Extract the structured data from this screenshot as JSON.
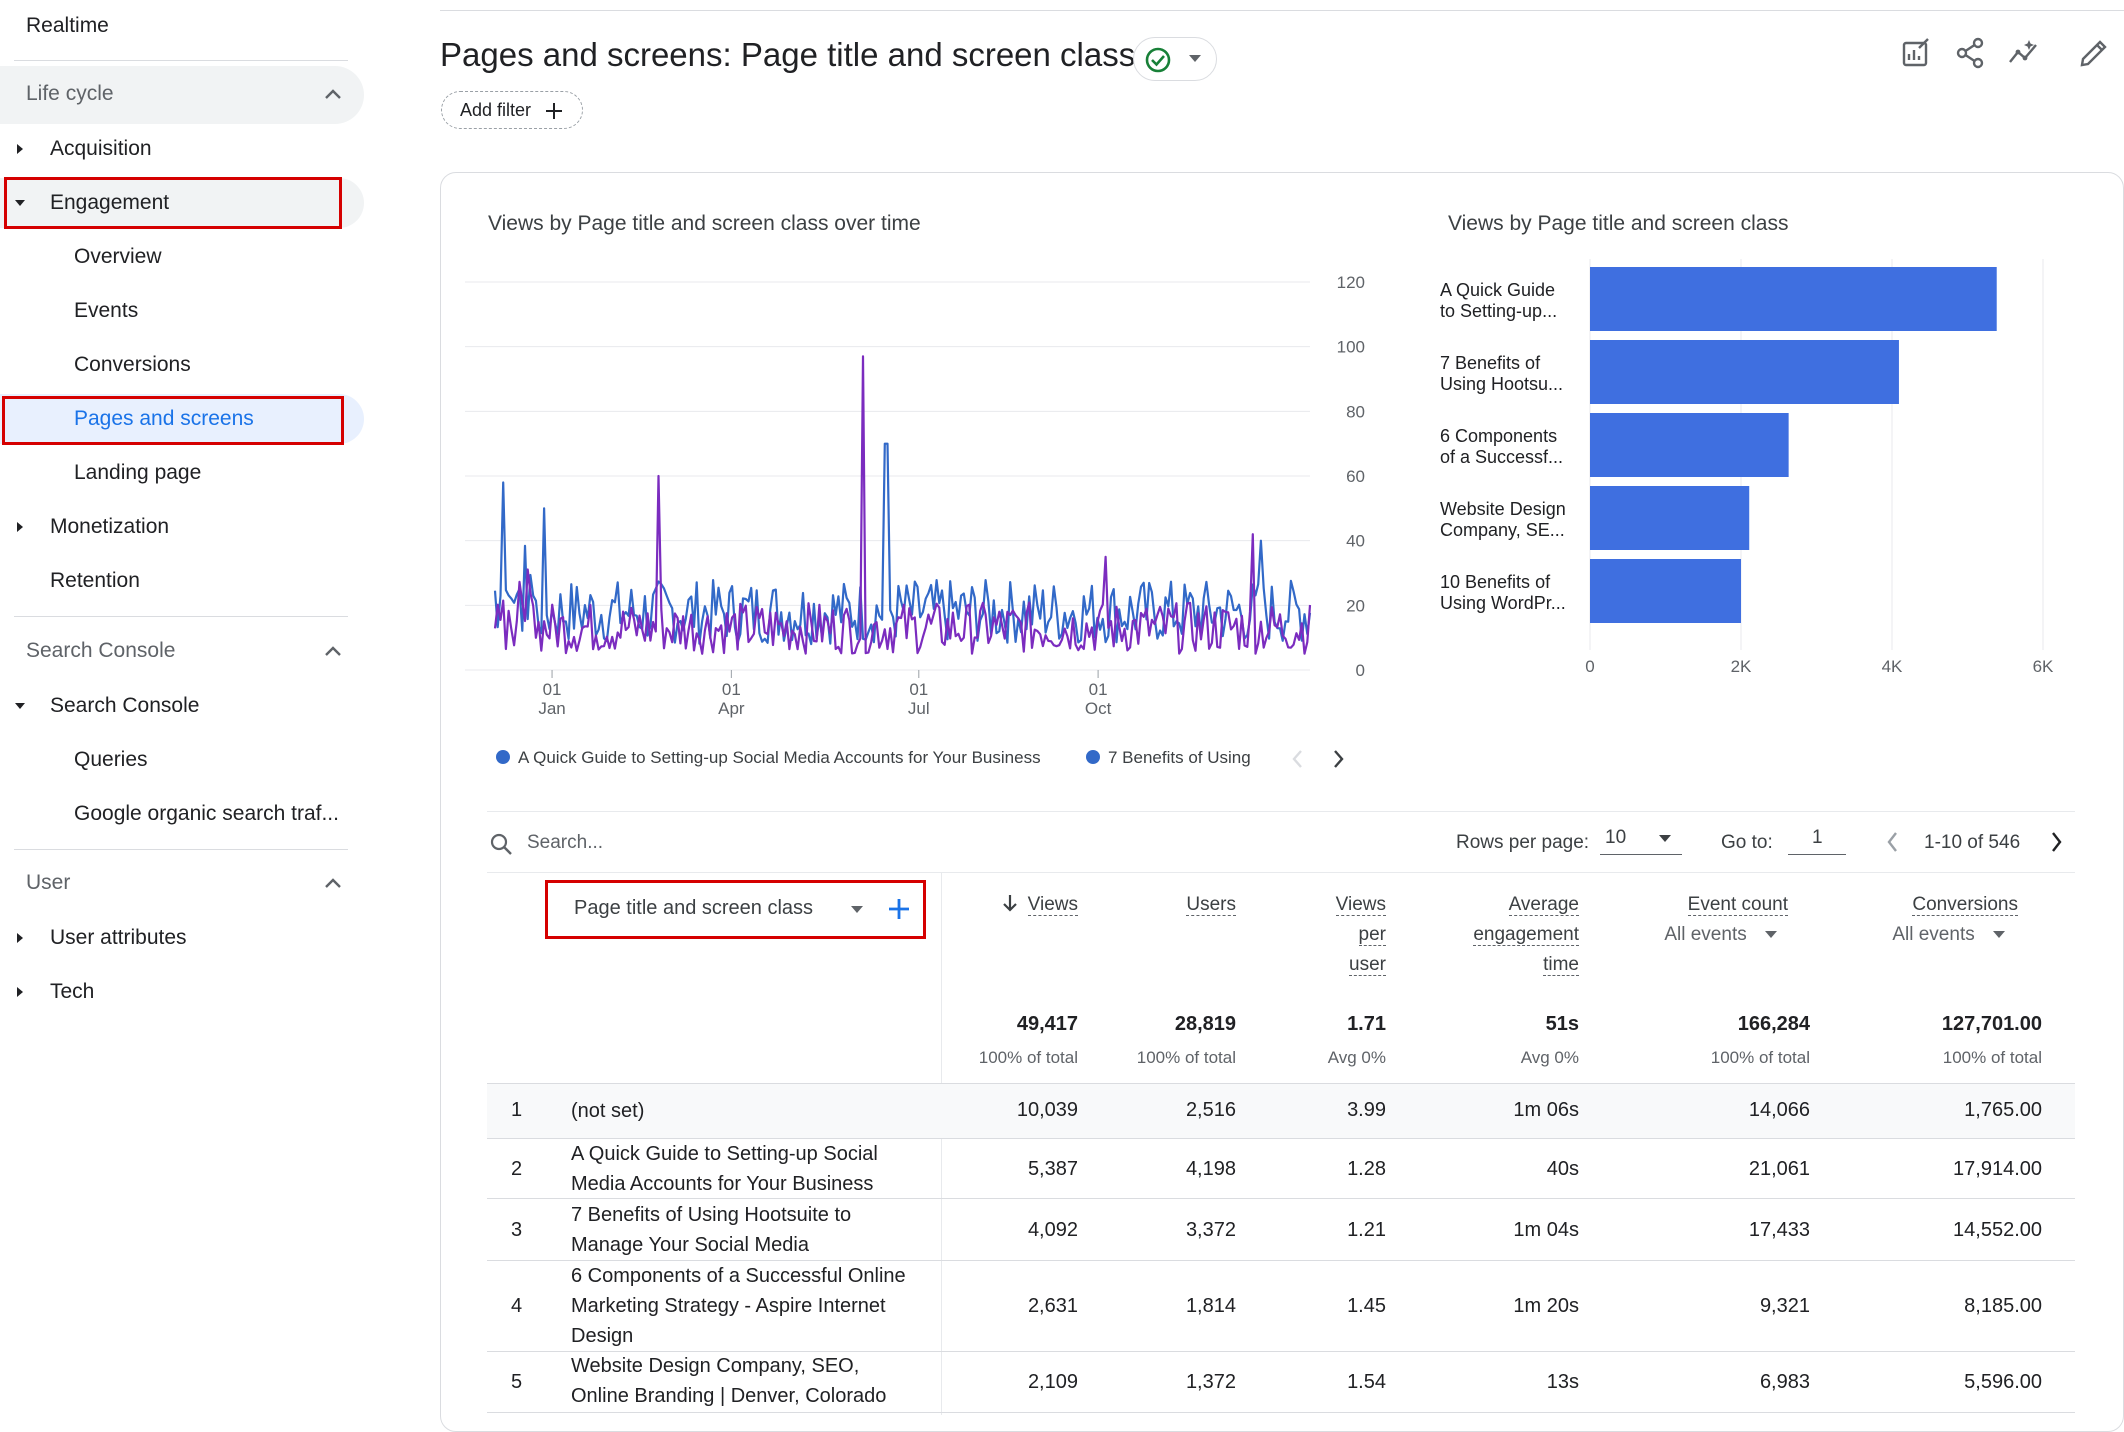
{
  "sidebar": {
    "realtime": "Realtime",
    "sections": [
      {
        "label": "Life cycle"
      },
      {
        "label": "Search Console"
      },
      {
        "label": "User"
      }
    ],
    "items": {
      "acquisition": "Acquisition",
      "engagement": "Engagement",
      "overview": "Overview",
      "events": "Events",
      "conversions": "Conversions",
      "pages_and_screens": "Pages and screens",
      "landing_page": "Landing page",
      "monetization": "Monetization",
      "retention": "Retention",
      "search_console": "Search Console",
      "queries": "Queries",
      "google_organic": "Google organic search traf...",
      "user_attributes": "User attributes",
      "tech": "Tech"
    }
  },
  "header": {
    "title": "Pages and screens: Page title and screen class",
    "add_filter": "Add filter"
  },
  "line_chart": {
    "title": "Views by Page title and screen class over time",
    "legend": [
      "A Quick Guide to Setting-up Social Media Accounts for Your Business",
      "7 Benefits of Using"
    ]
  },
  "bar_chart": {
    "title": "Views by Page title and screen class"
  },
  "chart_data": [
    {
      "type": "line",
      "title": "Views by Page title and screen class over time",
      "ylim": [
        0,
        120
      ],
      "y_ticks": [
        "120",
        "100",
        "80",
        "60",
        "40",
        "20",
        "0"
      ],
      "x_ticks": [
        {
          "top": "01",
          "bottom": "Jan"
        },
        {
          "top": "01",
          "bottom": "Apr"
        },
        {
          "top": "01",
          "bottom": "Jul"
        },
        {
          "top": "01",
          "bottom": "Oct"
        }
      ],
      "series": [
        {
          "name": "A Quick Guide to Setting-up Social Media Accounts for Your Business",
          "color": "#3269c8",
          "peaks": [
            {
              "x": 0.01,
              "y": 58
            },
            {
              "x": 0.06,
              "y": 50
            },
            {
              "x": 0.48,
              "y": 70
            },
            {
              "x": 0.94,
              "y": 40
            }
          ]
        },
        {
          "name": "7 Benefits of Using Hootsuite to Manage Your Social Media",
          "color": "#7b2cbf",
          "peaks": [
            {
              "x": 0.2,
              "y": 60
            },
            {
              "x": 0.45,
              "y": 97
            },
            {
              "x": 0.75,
              "y": 35
            },
            {
              "x": 0.93,
              "y": 42
            }
          ]
        }
      ]
    },
    {
      "type": "bar",
      "title": "Views by Page title and screen class",
      "categories": [
        [
          "A Quick Guide",
          "to Setting-up..."
        ],
        [
          "7 Benefits of",
          "Using Hootsu..."
        ],
        [
          "6 Components",
          "of a Successf..."
        ],
        [
          "Website Design",
          "Company, SE..."
        ],
        [
          "10 Benefits of",
          "Using WordPr..."
        ]
      ],
      "values": [
        5387,
        4092,
        2631,
        2109,
        2000
      ],
      "xlim": [
        0,
        6000
      ],
      "x_ticks": [
        "0",
        "2K",
        "4K",
        "6K"
      ],
      "color": "#3f6fe0"
    }
  ],
  "table_controls": {
    "search_placeholder": "Search...",
    "rows_per_page_label": "Rows per page:",
    "rows_per_page_value": "10",
    "goto_label": "Go to:",
    "goto_value": "1",
    "range": "1-10 of 546"
  },
  "table": {
    "dimension": "Page title and screen class",
    "columns": [
      {
        "label": "Views",
        "sorted": true
      },
      {
        "label": "Users"
      },
      {
        "label": [
          "Views",
          "per",
          "user"
        ]
      },
      {
        "label": [
          "Average",
          "engagement",
          "time"
        ]
      },
      {
        "label": "Event count",
        "sub": "All events"
      },
      {
        "label": "Conversions",
        "sub": "All events"
      }
    ],
    "totals": [
      "49,417",
      "28,819",
      "1.71",
      "51s",
      "166,284",
      "127,701.00"
    ],
    "totals_sub": [
      "100% of total",
      "100% of total",
      "Avg 0%",
      "Avg 0%",
      "100% of total",
      "100% of total"
    ],
    "rows": [
      {
        "n": "1",
        "title": "(not set)",
        "vals": [
          "10,039",
          "2,516",
          "3.99",
          "1m 06s",
          "14,066",
          "1,765.00"
        ]
      },
      {
        "n": "2",
        "title": "A Quick Guide to Setting-up Social Media Accounts for Your Business",
        "vals": [
          "5,387",
          "4,198",
          "1.28",
          "40s",
          "21,061",
          "17,914.00"
        ]
      },
      {
        "n": "3",
        "title": "7 Benefits of Using Hootsuite to Manage Your Social Media",
        "vals": [
          "4,092",
          "3,372",
          "1.21",
          "1m 04s",
          "17,433",
          "14,552.00"
        ]
      },
      {
        "n": "4",
        "title": "6 Components of a Successful Online Marketing Strategy - Aspire Internet Design",
        "vals": [
          "2,631",
          "1,814",
          "1.45",
          "1m 20s",
          "9,321",
          "8,185.00"
        ]
      },
      {
        "n": "5",
        "title": "Website Design Company, SEO, Online Branding | Denver, Colorado",
        "vals": [
          "2,109",
          "1,372",
          "1.54",
          "13s",
          "6,983",
          "5,596.00"
        ]
      }
    ]
  }
}
